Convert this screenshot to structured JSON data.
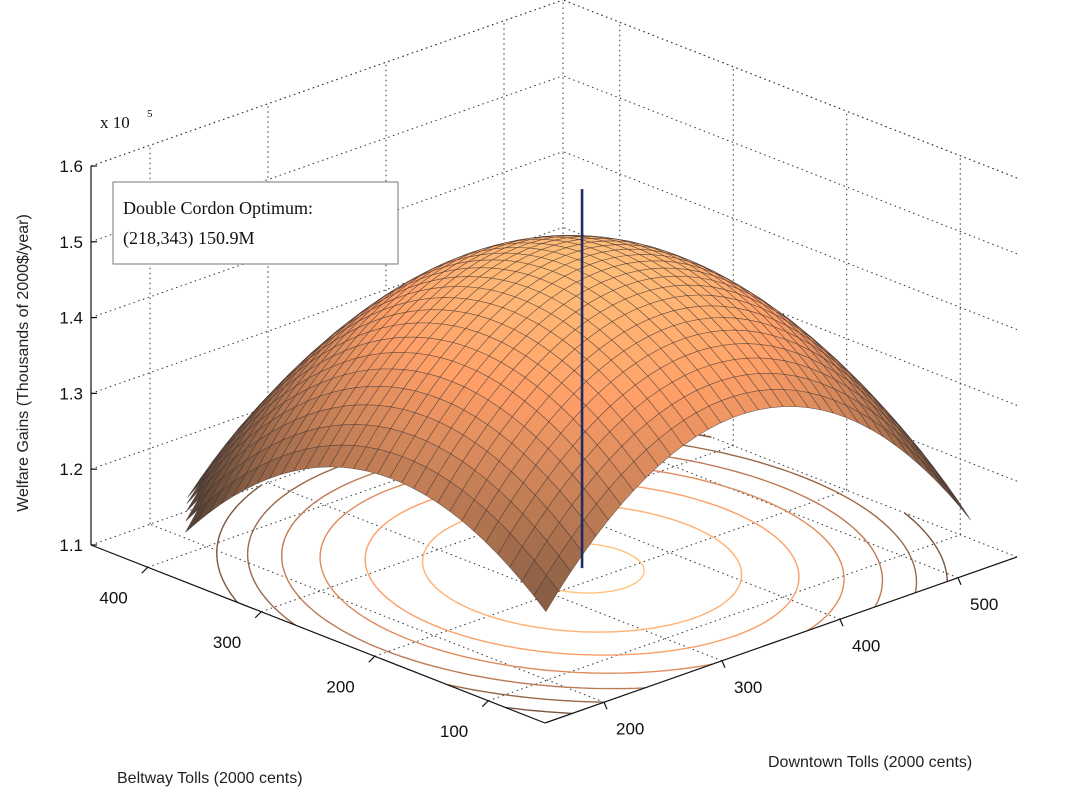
{
  "chart_data": {
    "type": "surface3d",
    "title": "",
    "xlabel": "Downtown Tolls (2000 cents)",
    "ylabel": "Beltway Tolls (2000 cents)",
    "zlabel": "Welfare Gains (Thousands of 2000$/year)",
    "z_exponent_label": "x 10",
    "z_exponent_power": "5",
    "x_ticks": [
      "200",
      "300",
      "400",
      "500"
    ],
    "y_ticks": [
      "100",
      "200",
      "300",
      "400"
    ],
    "z_ticks": [
      "1.1",
      "1.2",
      "1.3",
      "1.4",
      "1.5",
      "1.6"
    ],
    "xlim": [
      150,
      550
    ],
    "ylim": [
      50,
      450
    ],
    "zlim": [
      1.1,
      1.6
    ],
    "grid": true,
    "surface": {
      "colormap": "copper",
      "peak": {
        "downtown": 343,
        "beltway": 218,
        "value": 1.509
      },
      "edge_values": {
        "low_beltway_low_downtown": 1.18,
        "high_beltway_high_downtown": 1.23
      }
    },
    "contours": {
      "levels": [
        1.2,
        1.25,
        1.3,
        1.35,
        1.4,
        1.45,
        1.5
      ]
    },
    "optimum_marker": {
      "downtown": 343,
      "beltway": 218,
      "z_from": 1.1,
      "z_to": 1.6,
      "color": "#1f2a66"
    },
    "annotation_lines": [
      "Double Cordon Optimum:",
      "(218,343)  150.9M"
    ]
  }
}
